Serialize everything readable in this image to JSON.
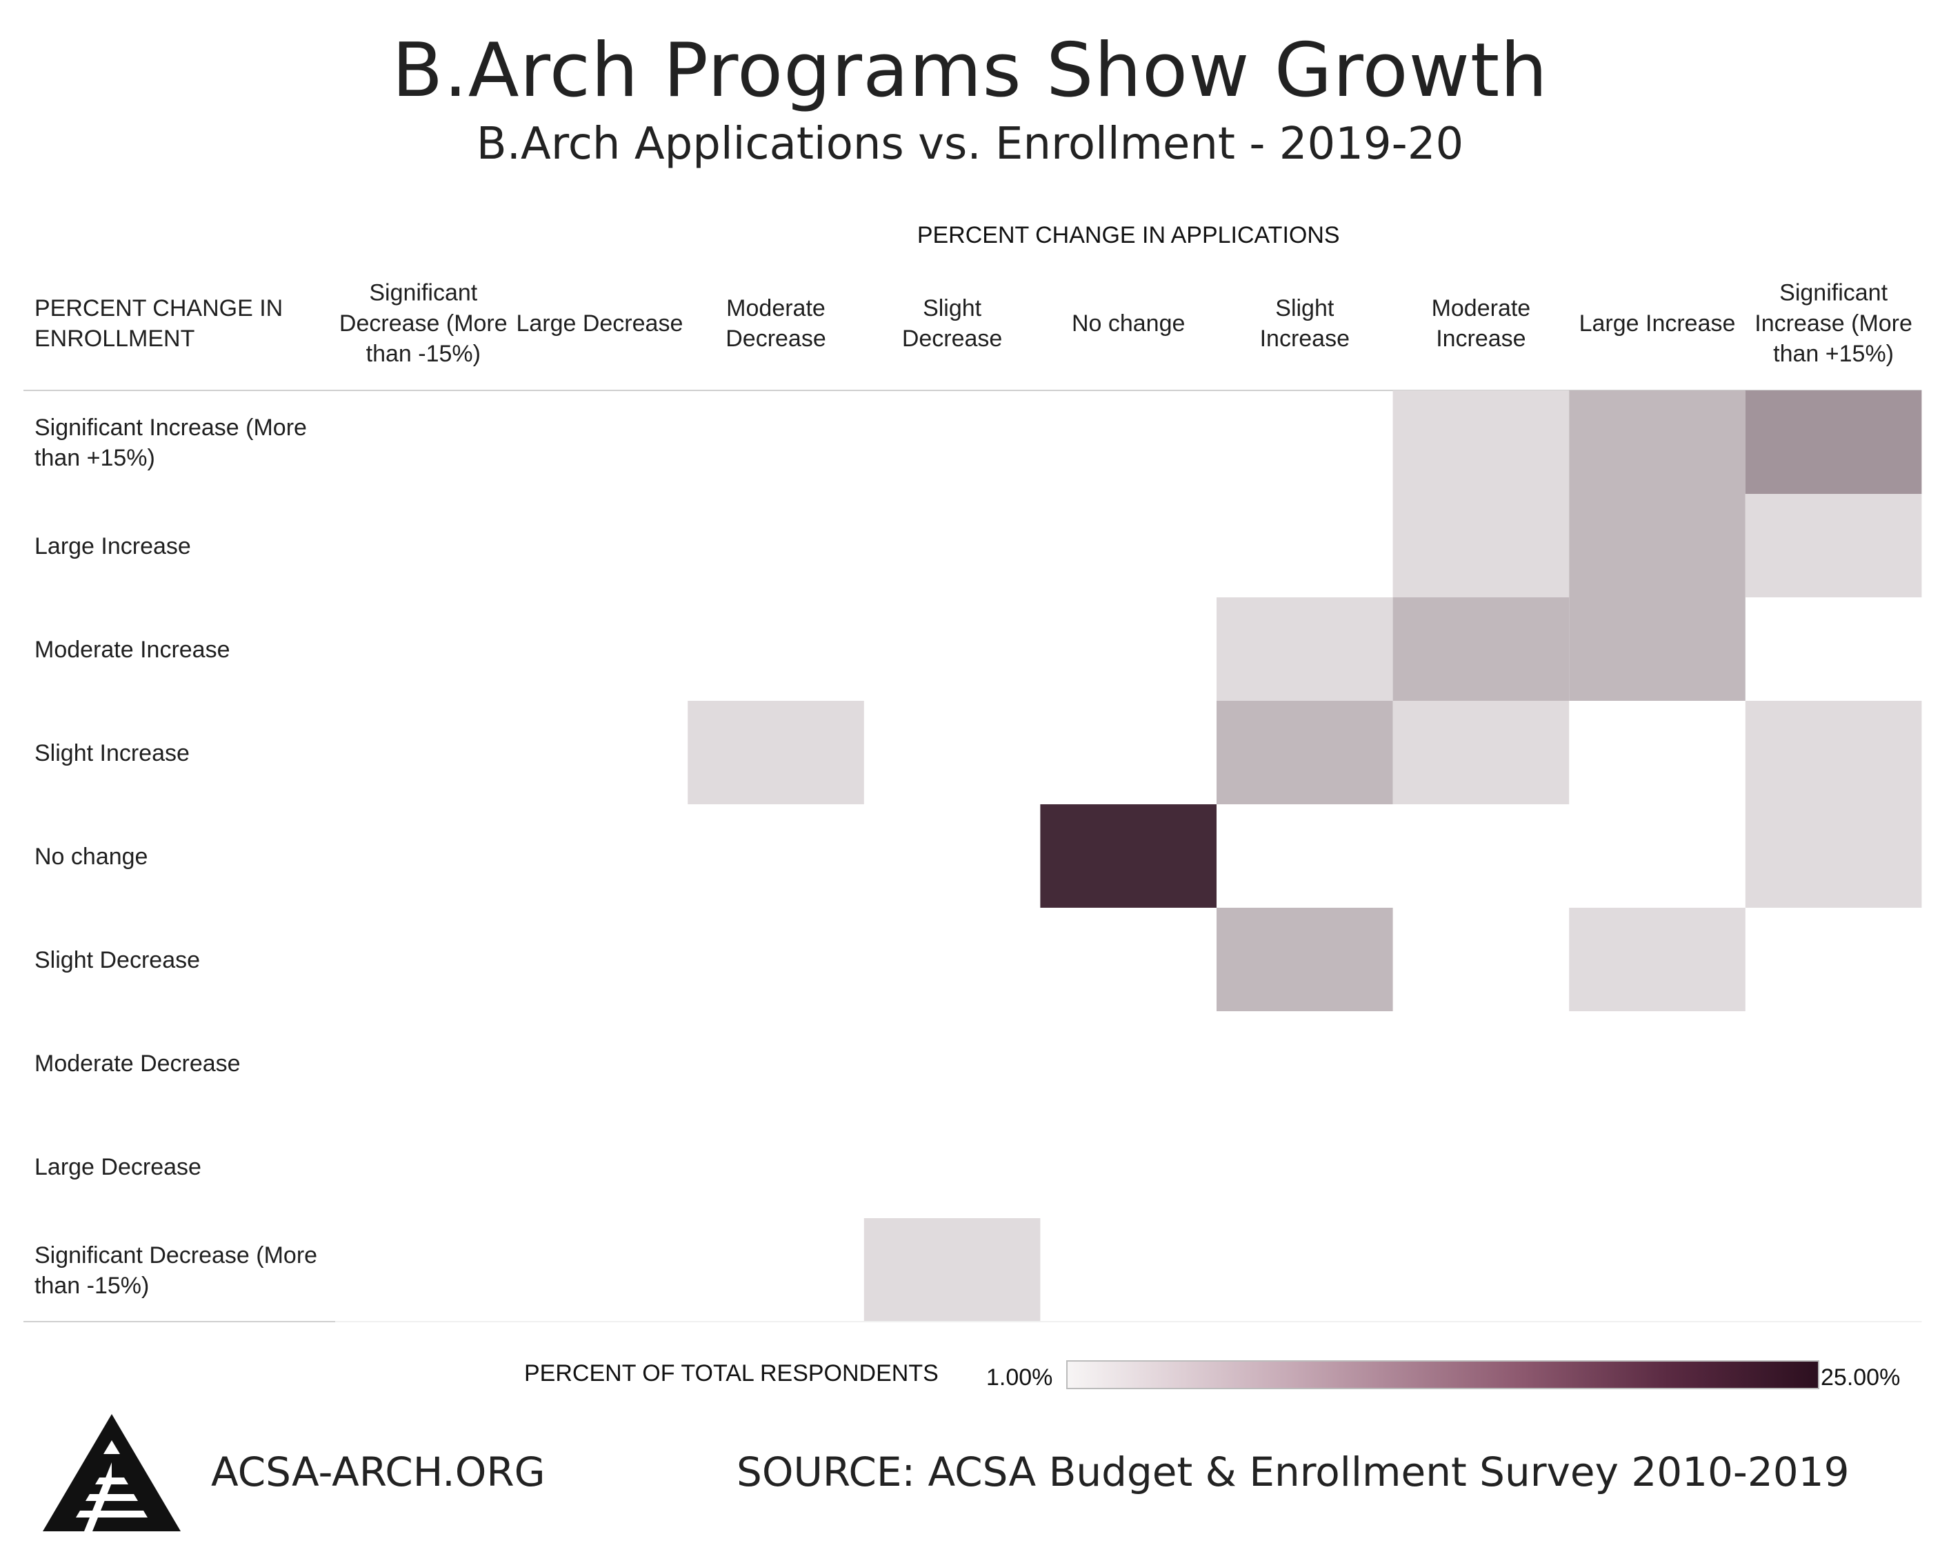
{
  "header": {
    "title": "B.Arch Programs Show Growth",
    "subtitle": "B.Arch Applications vs. Enrollment - 2019-20"
  },
  "legend": {
    "title": "PERCENT OF TOTAL RESPONDENTS",
    "min_label": "1.00%",
    "max_label": "25.00%",
    "color_low": "#f7f5f5",
    "color_high": "#2c0f1f"
  },
  "footer": {
    "site": "ACSA-ARCH.ORG",
    "source": "SOURCE: ACSA Budget & Enrollment Survey 2010-2019"
  },
  "chart_data": {
    "type": "heatmap",
    "title": "B.Arch Programs Show Growth",
    "subtitle": "B.Arch Applications vs. Enrollment - 2019-20",
    "xlabel": "PERCENT CHANGE IN APPLICATIONS",
    "ylabel": "PERCENT CHANGE IN ENROLLMENT",
    "x_categories": [
      "Significant Decrease (More than -15%)",
      "Large Decrease",
      "Moderate Decrease",
      "Slight Decrease",
      "No change",
      "Slight Increase",
      "Moderate Increase",
      "Large Increase",
      "Significant Increase (More than +15%)"
    ],
    "y_categories": [
      "Significant Increase (More than +15%)",
      "Large Increase",
      "Moderate Increase",
      "Slight Increase",
      "No change",
      "Slight Decrease",
      "Moderate Decrease",
      "Large Decrease",
      "Significant Decrease (More than -15%)"
    ],
    "color_range": [
      1.0,
      25.0
    ],
    "color_label": "PERCENT OF TOTAL RESPONDENTS",
    "values": [
      [
        null,
        null,
        null,
        null,
        null,
        null,
        3.7,
        7.4,
        11.1
      ],
      [
        null,
        null,
        null,
        null,
        null,
        null,
        3.7,
        7.4,
        3.7
      ],
      [
        null,
        null,
        null,
        null,
        null,
        3.7,
        7.4,
        7.4,
        null
      ],
      [
        null,
        null,
        3.7,
        null,
        null,
        7.4,
        3.7,
        null,
        3.7
      ],
      [
        null,
        null,
        null,
        null,
        22.2,
        null,
        null,
        null,
        3.7
      ],
      [
        null,
        null,
        null,
        null,
        null,
        7.4,
        null,
        3.7,
        null
      ],
      [
        null,
        null,
        null,
        null,
        null,
        null,
        null,
        null,
        null
      ],
      [
        null,
        null,
        null,
        null,
        null,
        null,
        null,
        null,
        null
      ],
      [
        null,
        null,
        null,
        3.7,
        null,
        null,
        null,
        null,
        null
      ]
    ]
  }
}
